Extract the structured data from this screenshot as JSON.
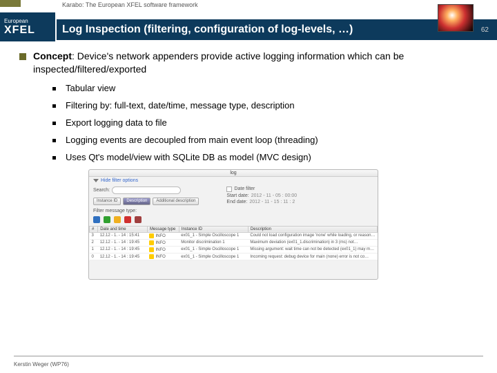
{
  "header": {
    "subtitle": "Karabo: The European XFEL software framework",
    "logo_top": "European",
    "logo_main": "XFEL",
    "title": "Log Inspection (filtering, configuration of log-levels, …)",
    "slide_number": "62"
  },
  "main_point": {
    "lead": "Concept",
    "rest": ": Device's network appenders provide active logging information which can be inspected/filtered/exported"
  },
  "sub_points": [
    "Tabular view",
    "Filtering by: full-text, date/time, message type, description",
    "Export logging data to file",
    "Logging events are decoupled from main event loop (threading)",
    "Uses Qt's model/view with SQLite DB as model (MVC design)"
  ],
  "screenshot": {
    "window_title": "log",
    "toggle": "Hide filter options",
    "search_label": "Search:",
    "buttons": [
      "Instance ID",
      "Description",
      "Additional description"
    ],
    "datefilter_label": "Date filter",
    "start_label": "Start date:",
    "end_label": "End date:",
    "start_val": "2012 - 11 - 05 : 00:00",
    "end_val": "2012 - 11 - 15 : 11 : 2",
    "msgtype_label": "Filter message type:",
    "icon_colors": [
      "#3070c0",
      "#30a030",
      "#f0b020",
      "#d03030",
      "#a04040"
    ],
    "headers": [
      "#",
      "Date and time",
      "Message type",
      "Instance ID",
      "Description"
    ],
    "rows": [
      [
        "3",
        "12.12 - 1. - 14 : 15:41",
        "INFO",
        "ex01_1 - Simple Oscilloscope 1",
        "Could not load configuration image 'none' while loading, or reason…"
      ],
      [
        "2",
        "12.12 - 1. - 14 : 19:45",
        "INFO",
        "Monitor discrimination 1",
        "Maximum deviation (ex01_1.discrimination) in 3 (ms) not…"
      ],
      [
        "1",
        "12.12 - 1. - 14 : 19:45",
        "INFO",
        "ex01_1 - Simple Oscilloscope 1",
        "Missing argument: wait time can not be detected (ex01_1) may m…"
      ],
      [
        "0",
        "12.12 - 1. - 14 : 19:45",
        "INFO",
        "ex01_1 - Simple Oscilloscope 1",
        "Incoming request: debug device for main (none) error is not co…"
      ]
    ]
  },
  "footer": "Kerstin Weger (WP76)"
}
